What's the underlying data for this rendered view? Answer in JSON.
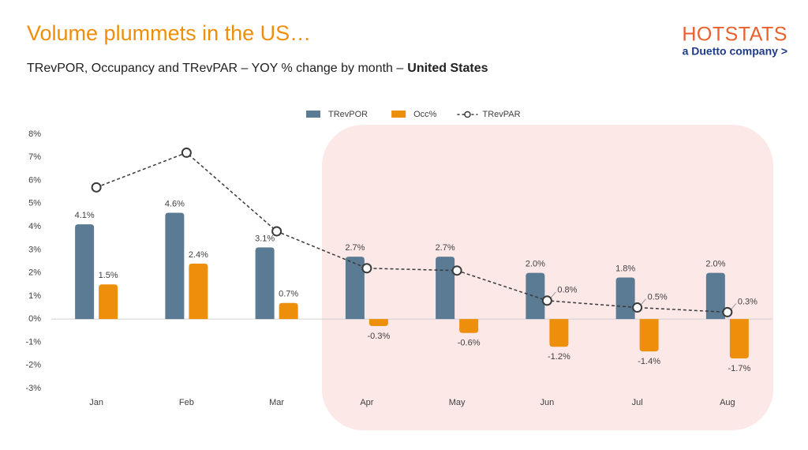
{
  "logo": {
    "name": "HOTSTATS",
    "tagline": "a Duetto company >"
  },
  "chart_data": {
    "type": "bar-line",
    "title": "Volume plummets in the US…",
    "subtitle": "TRevPOR, Occupancy and TRevPAR – YOY % change by month –",
    "subtitle_region": "United States",
    "categories": [
      "Jan",
      "Feb",
      "Mar",
      "Apr",
      "May",
      "Jun",
      "Jul",
      "Aug"
    ],
    "series": [
      {
        "name": "TRevPOR",
        "type": "bar",
        "color": "#5b7b94",
        "values": [
          4.1,
          4.6,
          3.1,
          2.7,
          2.7,
          2.0,
          1.8,
          2.0
        ],
        "value_labels": [
          "4.1%",
          "4.6%",
          "3.1%",
          "2.7%",
          "2.7%",
          "2.0%",
          "1.8%",
          "2.0%"
        ]
      },
      {
        "name": "Occ%",
        "type": "bar",
        "color": "#ee8f0c",
        "values": [
          1.5,
          2.4,
          0.7,
          -0.3,
          -0.6,
          -1.2,
          -1.4,
          -1.7
        ],
        "value_labels": [
          "1.5%",
          "2.4%",
          "0.7%",
          "-0.3%",
          "-0.6%",
          "-1.2%",
          "-1.4%",
          "-1.7%"
        ]
      },
      {
        "name": "TRevPAR",
        "type": "line",
        "color": "#3a3a3a",
        "values": [
          5.7,
          7.2,
          3.8,
          2.2,
          2.1,
          0.8,
          0.5,
          0.3
        ],
        "value_labels": [
          null,
          null,
          null,
          null,
          null,
          "0.8%",
          "0.5%",
          "0.3%"
        ]
      }
    ],
    "ylim": [
      -3,
      8
    ],
    "yticks": [
      {
        "value": -3,
        "label": "-3%"
      },
      {
        "value": -2,
        "label": "-2%"
      },
      {
        "value": -1,
        "label": "-1%"
      },
      {
        "value": 0,
        "label": "0%"
      },
      {
        "value": 1,
        "label": "1%"
      },
      {
        "value": 2,
        "label": "2%"
      },
      {
        "value": 3,
        "label": "3%"
      },
      {
        "value": 4,
        "label": "4%"
      },
      {
        "value": 5,
        "label": "5%"
      },
      {
        "value": 6,
        "label": "6%"
      },
      {
        "value": 7,
        "label": "7%"
      },
      {
        "value": 8,
        "label": "8%"
      }
    ],
    "grid": false
  }
}
